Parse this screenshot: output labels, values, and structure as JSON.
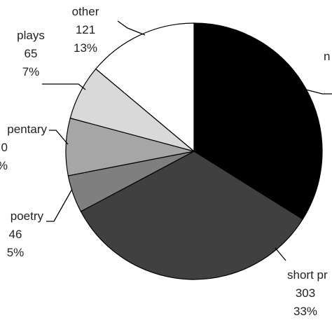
{
  "chart_data": {
    "type": "pie",
    "title": "",
    "slices": [
      {
        "name": "n",
        "value": null,
        "percent": null,
        "color": "#000000",
        "value_text": "",
        "percent_text": ""
      },
      {
        "name": "short pr",
        "value": 303,
        "percent": 33,
        "color": "#404040",
        "value_text": "303",
        "percent_text": "33%"
      },
      {
        "name": "poetry",
        "value": 46,
        "percent": 5,
        "color": "#7f7f7f",
        "value_text": "46",
        "percent_text": "5%"
      },
      {
        "name": "pentary",
        "value": null,
        "percent": null,
        "color": "#a6a6a6",
        "value_text": "0",
        "percent_text": "%"
      },
      {
        "name": "plays",
        "value": 65,
        "percent": 7,
        "color": "#d9d9d9",
        "value_text": "65",
        "percent_text": "7%"
      },
      {
        "name": "other",
        "value": 121,
        "percent": 13,
        "color": "#ffffff",
        "value_text": "121",
        "percent_text": "13%"
      }
    ]
  }
}
